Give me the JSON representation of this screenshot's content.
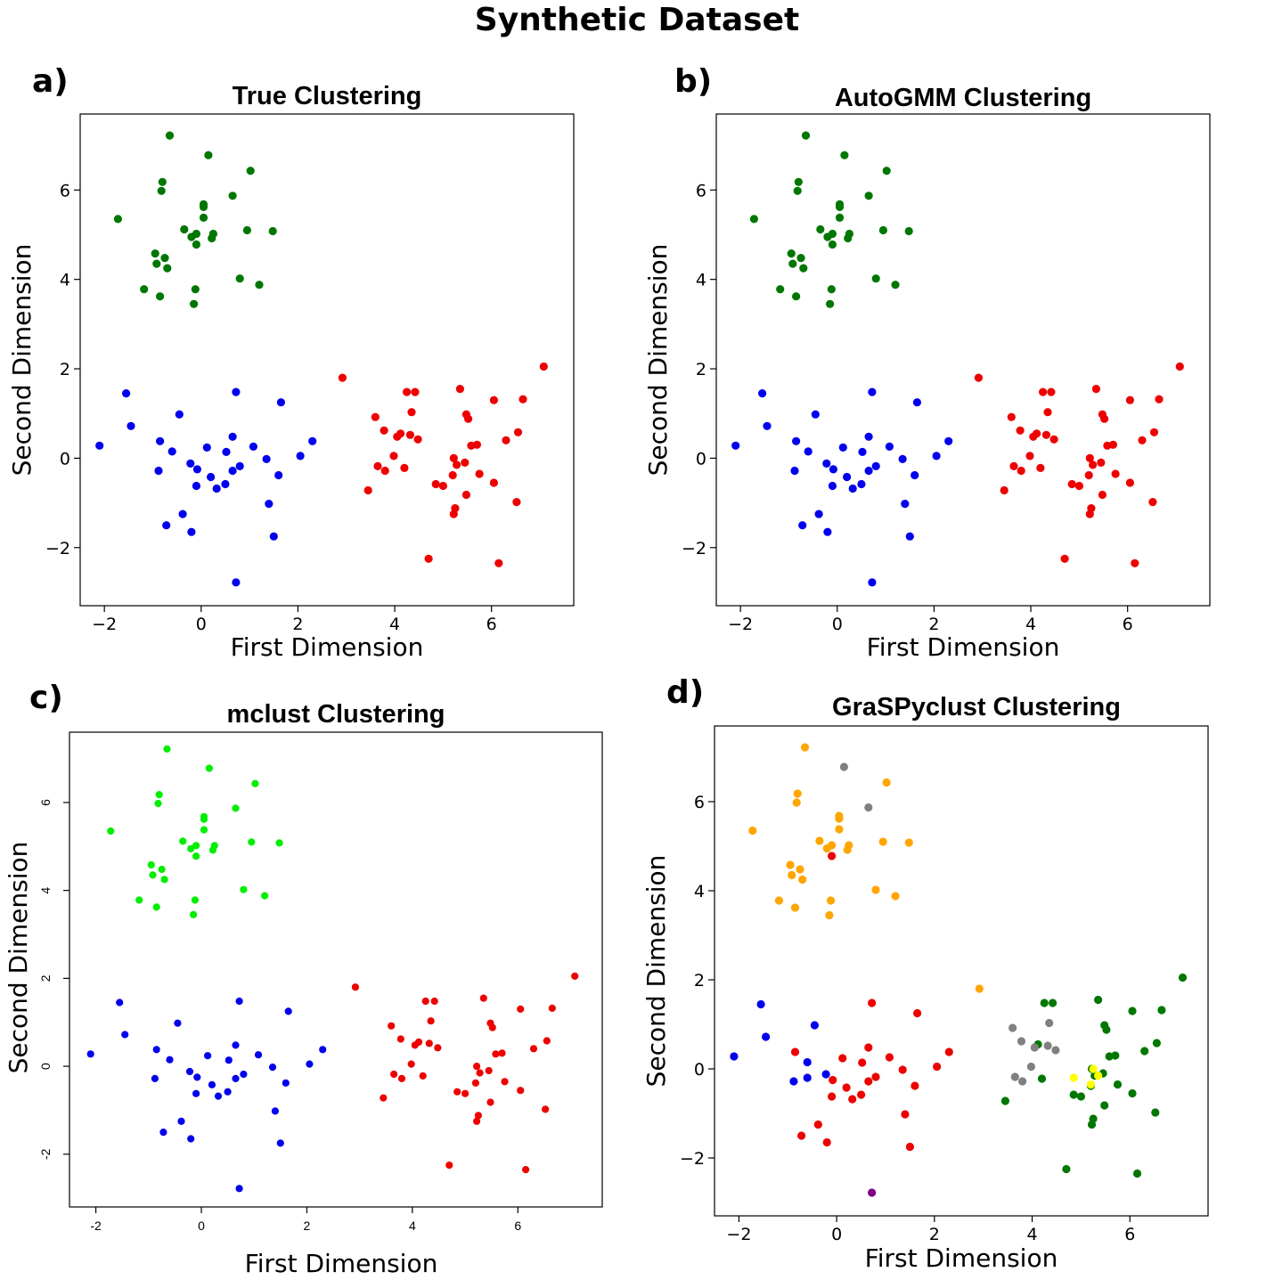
{
  "suptitle": "Synthetic Dataset",
  "colors": {
    "green": "#007700",
    "blue": "#0000ee",
    "red": "#ee0000",
    "lime": "#00ee00",
    "orange": "#ffa500",
    "gray": "#808080",
    "yellow": "#ffff00",
    "purple": "#800080"
  },
  "chart_data": [
    {
      "id": "a",
      "type": "scatter",
      "panel_label": "a)",
      "title": "True Clustering",
      "xlabel": "First Dimension",
      "ylabel": "Second Dimension",
      "xlim": [
        -2.5,
        7.7
      ],
      "ylim": [
        -3.3,
        7.7
      ],
      "xticks": [
        -2,
        0,
        2,
        4,
        6
      ],
      "xtick_labels": [
        "−2",
        "0",
        "2",
        "4",
        "6"
      ],
      "yticks": [
        -2,
        0,
        2,
        4,
        6
      ],
      "ytick_labels": [
        "−2",
        "0",
        "2",
        "4",
        "6"
      ],
      "style": "matplotlib",
      "scheme": [
        "green",
        "blue",
        "red"
      ]
    },
    {
      "id": "b",
      "type": "scatter",
      "panel_label": "b)",
      "title": "AutoGMM Clustering",
      "xlabel": "First Dimension",
      "ylabel": "Second Dimension",
      "xlim": [
        -2.5,
        7.7
      ],
      "ylim": [
        -3.3,
        7.7
      ],
      "xticks": [
        -2,
        0,
        2,
        4,
        6
      ],
      "xtick_labels": [
        "−2",
        "0",
        "2",
        "4",
        "6"
      ],
      "yticks": [
        -2,
        0,
        2,
        4,
        6
      ],
      "ytick_labels": [
        "−2",
        "0",
        "2",
        "4",
        "6"
      ],
      "style": "matplotlib",
      "scheme": [
        "green",
        "blue",
        "red"
      ]
    },
    {
      "id": "c",
      "type": "scatter",
      "panel_label": "c)",
      "title": "mclust Clustering",
      "xlabel": "First Dimension",
      "ylabel": "Second Dimension",
      "xlim": [
        -2.5,
        7.6
      ],
      "ylim": [
        -3.2,
        7.6
      ],
      "xticks": [
        -2,
        0,
        2,
        4,
        6
      ],
      "xtick_labels": [
        "-2",
        "0",
        "2",
        "4",
        "6"
      ],
      "yticks": [
        -2,
        0,
        2,
        4,
        6
      ],
      "ytick_labels": [
        "-2",
        "0",
        "2",
        "4",
        "6"
      ],
      "style": "r",
      "scheme": [
        "lime",
        "blue",
        "red"
      ]
    },
    {
      "id": "d",
      "type": "scatter",
      "panel_label": "d)",
      "title": "GraSPyclust Clustering",
      "xlabel": "First Dimension",
      "ylabel": "Second Dimension",
      "xlim": [
        -2.5,
        7.6
      ],
      "ylim": [
        -3.3,
        7.7
      ],
      "xticks": [
        -2,
        0,
        2,
        4,
        6
      ],
      "xtick_labels": [
        "−2",
        "0",
        "2",
        "4",
        "6"
      ],
      "yticks": [
        -2,
        0,
        2,
        4,
        6
      ],
      "ytick_labels": [
        "−2",
        "0",
        "2",
        "4",
        "6"
      ],
      "style": "matplotlib",
      "color_overrides": {
        "blue": "red",
        "blue_near": "blue",
        "green": "orange",
        "red_left": "gray",
        "red_right": "green"
      }
    }
  ],
  "points": {
    "green": [
      [
        -0.65,
        7.22
      ],
      [
        0.15,
        6.78
      ],
      [
        1.02,
        6.43
      ],
      [
        -0.8,
        6.18
      ],
      [
        -0.82,
        5.98
      ],
      [
        0.65,
        5.87
      ],
      [
        0.05,
        5.68
      ],
      [
        0.05,
        5.62
      ],
      [
        -1.72,
        5.35
      ],
      [
        0.05,
        5.38
      ],
      [
        -0.35,
        5.12
      ],
      [
        0.95,
        5.1
      ],
      [
        1.48,
        5.08
      ],
      [
        0.25,
        5.02
      ],
      [
        -0.1,
        5.02
      ],
      [
        -0.2,
        4.95
      ],
      [
        0.22,
        4.92
      ],
      [
        -0.1,
        4.78
      ],
      [
        -0.95,
        4.58
      ],
      [
        -0.75,
        4.48
      ],
      [
        -0.92,
        4.35
      ],
      [
        -0.7,
        4.25
      ],
      [
        0.8,
        4.02
      ],
      [
        1.2,
        3.88
      ],
      [
        -1.18,
        3.78
      ],
      [
        -0.12,
        3.78
      ],
      [
        -0.85,
        3.62
      ],
      [
        -0.15,
        3.45
      ]
    ],
    "blue": [
      [
        -1.55,
        1.45
      ],
      [
        0.72,
        1.48
      ],
      [
        1.65,
        1.25
      ],
      [
        -0.45,
        0.98
      ],
      [
        -1.45,
        0.72
      ],
      [
        0.65,
        0.48
      ],
      [
        -0.85,
        0.38
      ],
      [
        2.3,
        0.38
      ],
      [
        -2.1,
        0.28
      ],
      [
        0.12,
        0.24
      ],
      [
        1.08,
        0.26
      ],
      [
        -0.6,
        0.15
      ],
      [
        0.52,
        0.14
      ],
      [
        2.05,
        0.05
      ],
      [
        1.35,
        -0.02
      ],
      [
        -0.22,
        -0.12
      ],
      [
        0.8,
        -0.18
      ],
      [
        -0.88,
        -0.28
      ],
      [
        -0.08,
        -0.25
      ],
      [
        0.65,
        -0.28
      ],
      [
        0.2,
        -0.42
      ],
      [
        1.6,
        -0.38
      ],
      [
        0.5,
        -0.58
      ],
      [
        -0.1,
        -0.62
      ],
      [
        0.32,
        -0.68
      ],
      [
        1.4,
        -1.02
      ],
      [
        -0.38,
        -1.25
      ],
      [
        -0.72,
        -1.5
      ],
      [
        -0.2,
        -1.65
      ],
      [
        1.5,
        -1.75
      ],
      [
        0.72,
        -2.78
      ]
    ],
    "red": [
      [
        7.08,
        2.05
      ],
      [
        2.92,
        1.8
      ],
      [
        5.35,
        1.55
      ],
      [
        4.25,
        1.48
      ],
      [
        4.42,
        1.48
      ],
      [
        6.65,
        1.32
      ],
      [
        6.05,
        1.3
      ],
      [
        5.48,
        0.98
      ],
      [
        5.52,
        0.88
      ],
      [
        3.6,
        0.92
      ],
      [
        4.35,
        1.03
      ],
      [
        3.78,
        0.62
      ],
      [
        6.55,
        0.58
      ],
      [
        4.12,
        0.55
      ],
      [
        4.32,
        0.52
      ],
      [
        4.05,
        0.48
      ],
      [
        4.48,
        0.42
      ],
      [
        6.3,
        0.4
      ],
      [
        5.7,
        0.3
      ],
      [
        5.58,
        0.28
      ],
      [
        3.98,
        0.05
      ],
      [
        5.22,
        0.0
      ],
      [
        5.45,
        -0.1
      ],
      [
        3.65,
        -0.18
      ],
      [
        5.28,
        -0.15
      ],
      [
        4.2,
        -0.22
      ],
      [
        3.8,
        -0.28
      ],
      [
        5.2,
        -0.38
      ],
      [
        5.75,
        -0.35
      ],
      [
        4.85,
        -0.58
      ],
      [
        5.0,
        -0.62
      ],
      [
        6.05,
        -0.55
      ],
      [
        5.48,
        -0.82
      ],
      [
        3.45,
        -0.72
      ],
      [
        6.52,
        -0.98
      ],
      [
        5.25,
        -1.12
      ],
      [
        5.22,
        -1.25
      ],
      [
        4.7,
        -2.25
      ],
      [
        6.15,
        -2.35
      ]
    ]
  },
  "grasp_special": {
    "gray_top": [
      [
        0.65,
        5.87
      ],
      [
        0.15,
        6.78
      ]
    ],
    "red_in_orange": [
      [
        -0.1,
        4.78
      ]
    ],
    "blue_keep": [
      [
        -1.55,
        1.45
      ],
      [
        -1.45,
        0.72
      ],
      [
        -2.1,
        0.28
      ],
      [
        -0.45,
        0.98
      ],
      [
        -0.6,
        0.15
      ],
      [
        -0.88,
        -0.28
      ],
      [
        -0.6,
        -0.2
      ],
      [
        -0.2,
        -0.12
      ]
    ],
    "purple": [
      [
        0.72,
        -2.78
      ]
    ],
    "gray_cluster": [
      [
        3.6,
        0.92
      ],
      [
        4.35,
        1.03
      ],
      [
        3.78,
        0.62
      ],
      [
        4.32,
        0.52
      ],
      [
        4.05,
        0.48
      ],
      [
        4.48,
        0.42
      ],
      [
        3.98,
        0.05
      ],
      [
        3.65,
        -0.18
      ],
      [
        3.8,
        -0.28
      ],
      [
        4.32,
        0.58
      ]
    ],
    "yellow": [
      [
        4.85,
        -0.2
      ],
      [
        5.25,
        0.0
      ],
      [
        5.35,
        -0.15
      ],
      [
        5.2,
        -0.35
      ]
    ]
  }
}
